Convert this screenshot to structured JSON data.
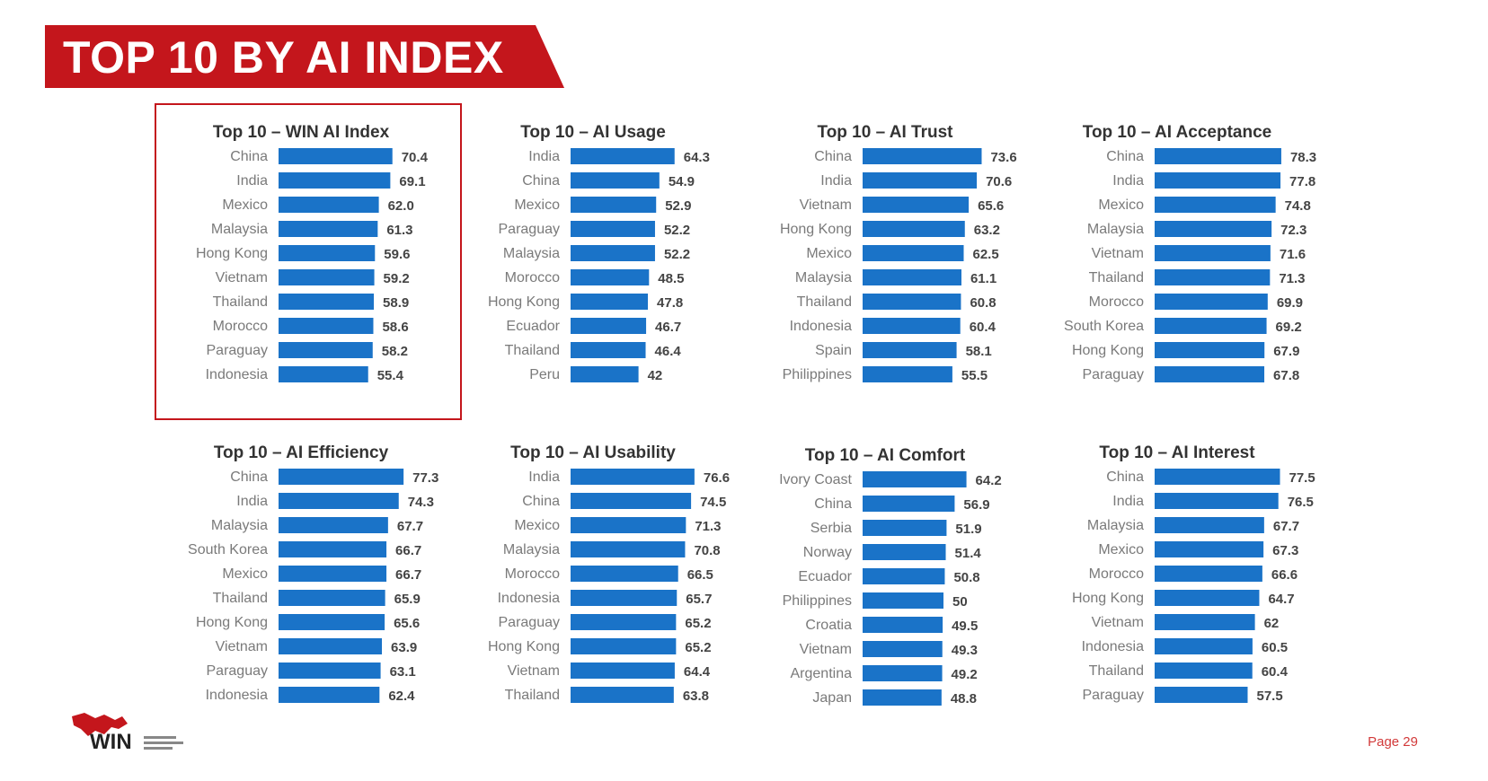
{
  "header": {
    "title": "TOP 10 BY AI INDEX"
  },
  "footer": {
    "page_label": "Page 29",
    "logo_text": "WIN"
  },
  "colors": {
    "bar": "#1a73c8",
    "accent_red": "#c4161c"
  },
  "highlighted_chart": 0,
  "chart_data": [
    {
      "type": "bar",
      "orientation": "horizontal",
      "title": "Top 10 – WIN AI Index",
      "categories": [
        "China",
        "India",
        "Mexico",
        "Malaysia",
        "Hong Kong",
        "Vietnam",
        "Thailand",
        "Morocco",
        "Paraguay",
        "Indonesia"
      ],
      "values": [
        70.4,
        69.1,
        62.0,
        61.3,
        59.6,
        59.2,
        58.9,
        58.6,
        58.2,
        55.4
      ],
      "labels": [
        "70.4",
        "69.1",
        "62.0",
        "61.3",
        "59.6",
        "59.2",
        "58.9",
        "58.6",
        "58.2",
        "55.4"
      ]
    },
    {
      "type": "bar",
      "orientation": "horizontal",
      "title": "Top 10 – AI Usage",
      "categories": [
        "India",
        "China",
        "Mexico",
        "Paraguay",
        "Malaysia",
        "Morocco",
        "Hong Kong",
        "Ecuador",
        "Thailand",
        "Peru"
      ],
      "values": [
        64.3,
        54.9,
        52.9,
        52.2,
        52.2,
        48.5,
        47.8,
        46.7,
        46.4,
        42
      ],
      "labels": [
        "64.3",
        "54.9",
        "52.9",
        "52.2",
        "52.2",
        "48.5",
        "47.8",
        "46.7",
        "46.4",
        "42"
      ]
    },
    {
      "type": "bar",
      "orientation": "horizontal",
      "title": "Top 10 – AI Trust",
      "categories": [
        "China",
        "India",
        "Vietnam",
        "Hong Kong",
        "Mexico",
        "Malaysia",
        "Thailand",
        "Indonesia",
        "Spain",
        "Philippines"
      ],
      "values": [
        73.6,
        70.6,
        65.6,
        63.2,
        62.5,
        61.1,
        60.8,
        60.4,
        58.1,
        55.5
      ],
      "labels": [
        "73.6",
        "70.6",
        "65.6",
        "63.2",
        "62.5",
        "61.1",
        "60.8",
        "60.4",
        "58.1",
        "55.5"
      ]
    },
    {
      "type": "bar",
      "orientation": "horizontal",
      "title": "Top 10 – AI Acceptance",
      "categories": [
        "China",
        "India",
        "Mexico",
        "Malaysia",
        "Vietnam",
        "Thailand",
        "Morocco",
        "South Korea",
        "Hong Kong",
        "Paraguay"
      ],
      "values": [
        78.3,
        77.8,
        74.8,
        72.3,
        71.6,
        71.3,
        69.9,
        69.2,
        67.9,
        67.8
      ],
      "labels": [
        "78.3",
        "77.8",
        "74.8",
        "72.3",
        "71.6",
        "71.3",
        "69.9",
        "69.2",
        "67.9",
        "67.8"
      ]
    },
    {
      "type": "bar",
      "orientation": "horizontal",
      "title": "Top 10 – AI Efficiency",
      "categories": [
        "China",
        "India",
        "Malaysia",
        "South Korea",
        "Mexico",
        "Thailand",
        "Hong Kong",
        "Vietnam",
        "Paraguay",
        "Indonesia"
      ],
      "values": [
        77.3,
        74.3,
        67.7,
        66.7,
        66.7,
        65.9,
        65.6,
        63.9,
        63.1,
        62.4
      ],
      "labels": [
        "77.3",
        "74.3",
        "67.7",
        "66.7",
        "66.7",
        "65.9",
        "65.6",
        "63.9",
        "63.1",
        "62.4"
      ]
    },
    {
      "type": "bar",
      "orientation": "horizontal",
      "title": "Top 10 – AI Usability",
      "categories": [
        "India",
        "China",
        "Mexico",
        "Malaysia",
        "Morocco",
        "Indonesia",
        "Paraguay",
        "Hong Kong",
        "Vietnam",
        "Thailand"
      ],
      "values": [
        76.6,
        74.5,
        71.3,
        70.8,
        66.5,
        65.7,
        65.2,
        65.2,
        64.4,
        63.8
      ],
      "labels": [
        "76.6",
        "74.5",
        "71.3",
        "70.8",
        "66.5",
        "65.7",
        "65.2",
        "65.2",
        "64.4",
        "63.8"
      ]
    },
    {
      "type": "bar",
      "orientation": "horizontal",
      "title": "Top 10 – AI Comfort",
      "categories": [
        "Ivory Coast",
        "China",
        "Serbia",
        "Norway",
        "Ecuador",
        "Philippines",
        "Croatia",
        "Vietnam",
        "Argentina",
        "Japan"
      ],
      "values": [
        64.2,
        56.9,
        51.9,
        51.4,
        50.8,
        50,
        49.5,
        49.3,
        49.2,
        48.8
      ],
      "labels": [
        "64.2",
        "56.9",
        "51.9",
        "51.4",
        "50.8",
        "50",
        "49.5",
        "49.3",
        "49.2",
        "48.8"
      ]
    },
    {
      "type": "bar",
      "orientation": "horizontal",
      "title": "Top 10 – AI Interest",
      "categories": [
        "China",
        "India",
        "Malaysia",
        "Mexico",
        "Morocco",
        "Hong Kong",
        "Vietnam",
        "Indonesia",
        "Thailand",
        "Paraguay"
      ],
      "values": [
        77.5,
        76.5,
        67.7,
        67.3,
        66.6,
        64.7,
        62,
        60.5,
        60.4,
        57.5
      ],
      "labels": [
        "77.5",
        "76.5",
        "67.7",
        "67.3",
        "66.6",
        "64.7",
        "62",
        "60.5",
        "60.4",
        "57.5"
      ]
    }
  ]
}
